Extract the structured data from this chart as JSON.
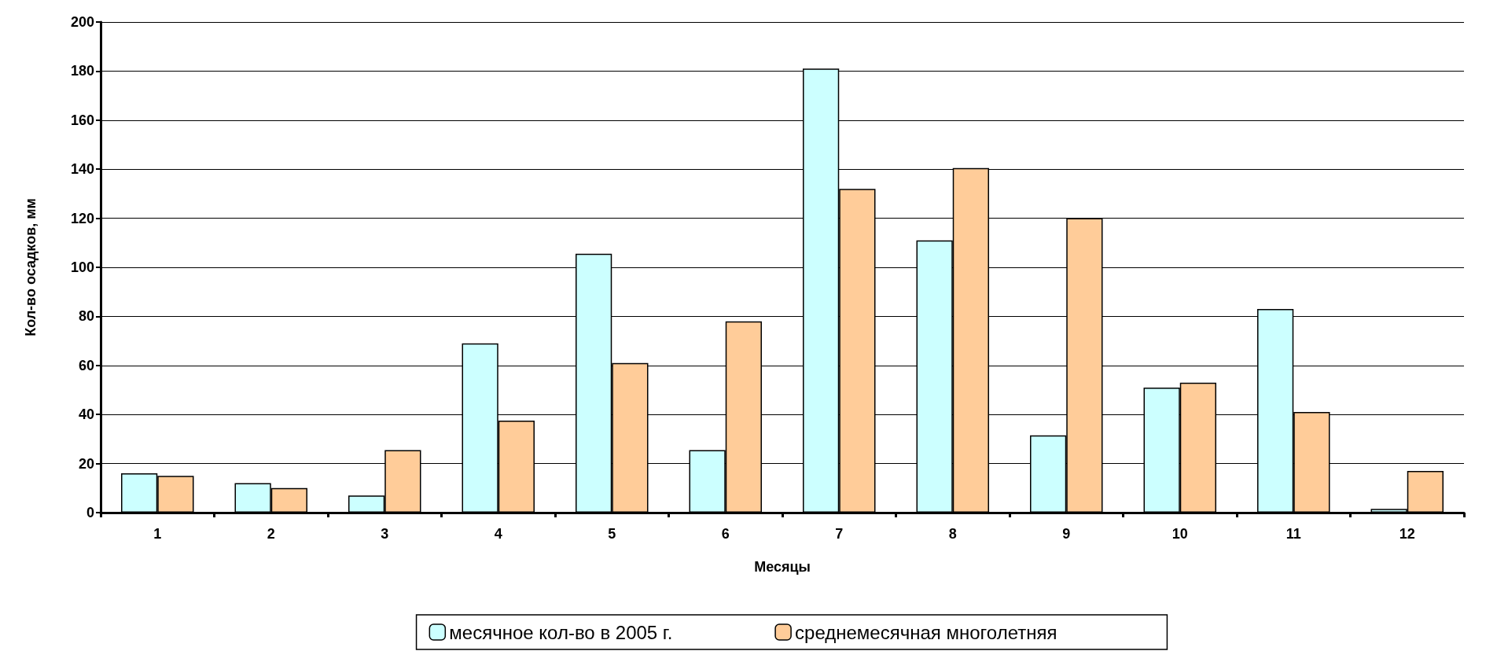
{
  "chart_data": {
    "type": "bar",
    "xlabel": "Месяцы",
    "ylabel": "Кол-во осадков, мм",
    "categories": [
      "1",
      "2",
      "3",
      "4",
      "5",
      "6",
      "7",
      "8",
      "9",
      "10",
      "11",
      "12"
    ],
    "series": [
      {
        "name": "месячное кол-во в 2005 г.",
        "color": "#ccffff",
        "values": [
          16,
          12,
          7,
          69,
          105.5,
          25.5,
          181,
          111,
          31.5,
          51,
          83,
          1.5
        ]
      },
      {
        "name": "среднемесячная многолетняя",
        "color": "#ffcc99",
        "values": [
          15,
          10,
          25.5,
          37.5,
          61,
          78,
          132,
          140.5,
          120,
          53,
          41,
          17
        ]
      }
    ],
    "ylim": [
      0,
      200
    ],
    "yticks": [
      0,
      20,
      40,
      60,
      80,
      100,
      120,
      140,
      160,
      180,
      200
    ],
    "grid": "y",
    "legend": "bottom"
  }
}
